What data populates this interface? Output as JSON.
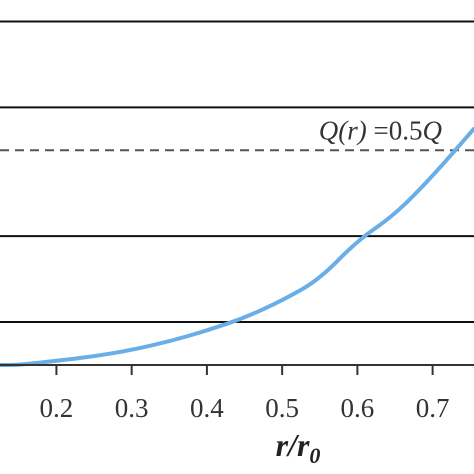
{
  "chart_data": {
    "type": "line",
    "title": "",
    "xlabel": "r/r0",
    "xlabel_main": "r/r",
    "xlabel_sub": "0",
    "ylabel": "",
    "xlim": [
      0.125,
      0.755
    ],
    "ylim": [
      0,
      0.85
    ],
    "x_ticks": [
      "0.2",
      "0.3",
      "0.4",
      "0.5",
      "0.6",
      "0.7"
    ],
    "x_tick_values": [
      0.2,
      0.3,
      0.4,
      0.5,
      0.6,
      0.7
    ],
    "hlines": [
      0.1,
      0.3,
      0.6,
      0.8
    ],
    "series": [
      {
        "color": "#6aaee8",
        "x": [
          0.125,
          0.15,
          0.2,
          0.25,
          0.3,
          0.35,
          0.4,
          0.45,
          0.5,
          0.55,
          0.6,
          0.65,
          0.7,
          0.755
        ],
        "y": [
          0.0,
          0.0,
          0.01,
          0.02,
          0.035,
          0.055,
          0.08,
          0.11,
          0.15,
          0.2,
          0.29,
          0.35,
          0.44,
          0.55
        ]
      }
    ],
    "annotation": {
      "text": "Q(r) =0.5Q",
      "part1": "Q(r)",
      "part2": " =0.5",
      "part3": "Q",
      "y": 0.5,
      "line_style": "dashed",
      "color": "#555555"
    },
    "grid": false
  }
}
